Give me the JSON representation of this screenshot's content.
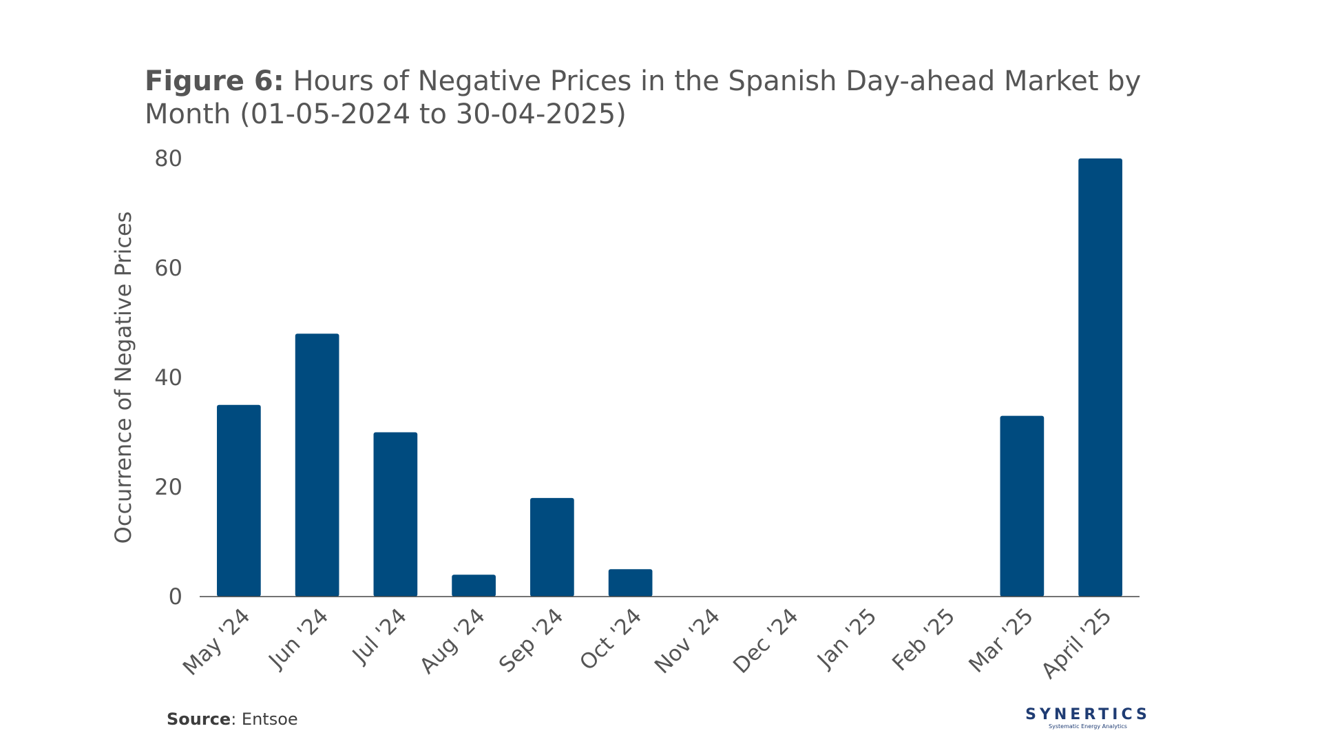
{
  "title": {
    "bold": "Figure 6:",
    "text": " Hours of Negative Prices in the Spanish Day-ahead Market by Month (01-05-2024 to 30-04-2025)"
  },
  "source": {
    "label": "Source",
    "value": ": Entsoe"
  },
  "logo": {
    "name": "SYNERTICS",
    "tagline": "Systematic Energy Analytics"
  },
  "colors": {
    "bar": "#004b7f",
    "axis": "#444444",
    "text": "#555555"
  },
  "chart_data": {
    "type": "bar",
    "title": "Hours of Negative Prices in the Spanish Day-ahead Market by Month (01-05-2024 to 30-04-2025)",
    "xlabel": "",
    "ylabel": "Occurrence  of Negative Prices",
    "categories": [
      "May '24",
      "Jun '24",
      "Jul '24",
      "Aug '24",
      "Sep '24",
      "Oct '24",
      "Nov '24",
      "Dec '24",
      "Jan '25",
      "Feb '25",
      "Mar '25",
      "April '25"
    ],
    "values": [
      35,
      48,
      30,
      4,
      18,
      5,
      0,
      0,
      0,
      0,
      33,
      80
    ],
    "ylim": [
      0,
      80
    ],
    "yticks": [
      0,
      20,
      40,
      60,
      80
    ],
    "grid": false
  }
}
